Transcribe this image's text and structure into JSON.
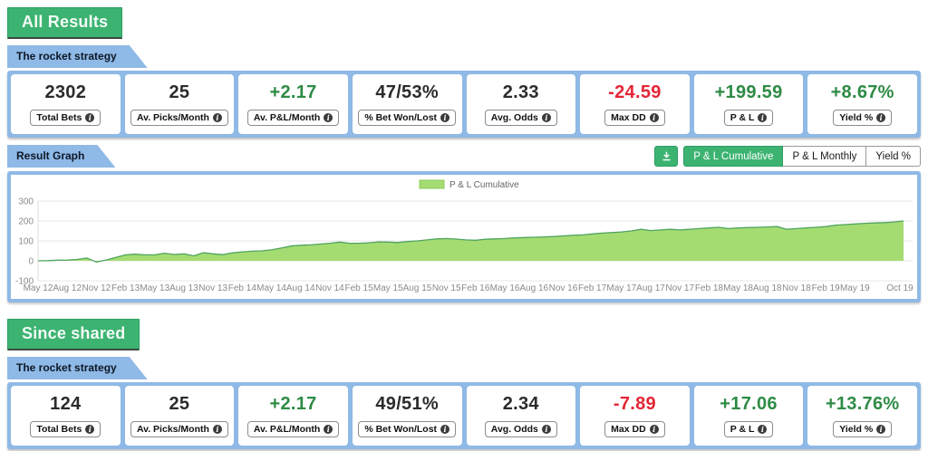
{
  "sections": {
    "all_results": {
      "title": "All Results",
      "strategy_tab": "The rocket strategy",
      "stats": [
        {
          "value": "2302",
          "label": "Total Bets",
          "color": "neutral"
        },
        {
          "value": "25",
          "label": "Av. Picks/Month",
          "color": "neutral"
        },
        {
          "value": "+2.17",
          "label": "Av. P&L/Month",
          "color": "green"
        },
        {
          "value": "47/53%",
          "label": "% Bet Won/Lost",
          "color": "neutral"
        },
        {
          "value": "2.33",
          "label": "Avg. Odds",
          "color": "neutral"
        },
        {
          "value": "-24.59",
          "label": "Max DD",
          "color": "red"
        },
        {
          "value": "+199.59",
          "label": "P & L",
          "color": "green"
        },
        {
          "value": "+8.67%",
          "label": "Yield %",
          "color": "green"
        }
      ]
    },
    "result_graph": {
      "tab": "Result Graph",
      "buttons": [
        {
          "label": "P & L Cumulative",
          "active": true
        },
        {
          "label": "P & L Monthly",
          "active": false
        },
        {
          "label": "Yield %",
          "active": false
        }
      ],
      "download_icon": "download-icon"
    },
    "since_shared": {
      "title": "Since shared",
      "strategy_tab": "The rocket strategy",
      "stats": [
        {
          "value": "124",
          "label": "Total Bets",
          "color": "neutral"
        },
        {
          "value": "25",
          "label": "Av. Picks/Month",
          "color": "neutral"
        },
        {
          "value": "+2.17",
          "label": "Av. P&L/Month",
          "color": "green"
        },
        {
          "value": "49/51%",
          "label": "% Bet Won/Lost",
          "color": "neutral"
        },
        {
          "value": "2.34",
          "label": "Avg. Odds",
          "color": "neutral"
        },
        {
          "value": "-7.89",
          "label": "Max DD",
          "color": "red"
        },
        {
          "value": "+17.06",
          "label": "P & L",
          "color": "green"
        },
        {
          "value": "+13.76%",
          "label": "Yield %",
          "color": "green"
        }
      ]
    }
  },
  "colors": {
    "blue": "#8fb9e6",
    "green_button": "#3cb371",
    "positive_text": "#2e8b45",
    "negative_text": "#e32636",
    "chart_fill": "#a5dc72",
    "chart_stroke": "#4fa45f",
    "axis_text": "#8a8a8a",
    "gridline": "#e7e7e7"
  },
  "chart_data": {
    "type": "area",
    "legend": "P & L Cumulative",
    "legend_position": "top-center",
    "grid": true,
    "ylim": [
      -100,
      300
    ],
    "yticks": [
      300,
      200,
      100,
      0,
      -100
    ],
    "xtick_labels": [
      "May 12",
      "Aug 12",
      "Nov 12",
      "Feb 13",
      "May 13",
      "Aug 13",
      "Nov 13",
      "Feb 14",
      "May 14",
      "Aug 14",
      "Nov 14",
      "Feb 15",
      "May 15",
      "Aug 15",
      "Nov 15",
      "Feb 16",
      "May 16",
      "Aug 16",
      "Nov 16",
      "Feb 17",
      "May 17",
      "Aug 17",
      "Nov 17",
      "Feb 18",
      "May 18",
      "Aug 18",
      "Nov 18",
      "Feb 19",
      "May 19",
      "Oct 19"
    ],
    "xtick_month_index": [
      0,
      3,
      6,
      9,
      12,
      15,
      18,
      21,
      24,
      27,
      30,
      33,
      36,
      39,
      42,
      45,
      48,
      51,
      54,
      57,
      60,
      63,
      66,
      69,
      72,
      75,
      78,
      81,
      84,
      89
    ],
    "series_name": "P & L Cumulative",
    "values": [
      0,
      1,
      3,
      4,
      7,
      14,
      -6,
      4,
      17,
      30,
      33,
      30,
      30,
      38,
      32,
      35,
      25,
      41,
      35,
      31,
      40,
      45,
      48,
      50,
      55,
      64,
      74,
      78,
      80,
      84,
      88,
      94,
      88,
      88,
      90,
      95,
      94,
      92,
      97,
      100,
      105,
      110,
      112,
      109,
      105,
      103,
      108,
      110,
      112,
      115,
      117,
      118,
      120,
      122,
      125,
      128,
      130,
      135,
      139,
      142,
      145,
      150,
      158,
      152,
      155,
      158,
      155,
      158,
      162,
      165,
      168,
      162,
      165,
      167,
      168,
      170,
      172,
      158,
      162,
      165,
      168,
      172,
      179,
      182,
      185,
      188,
      190,
      192,
      195,
      200
    ]
  }
}
